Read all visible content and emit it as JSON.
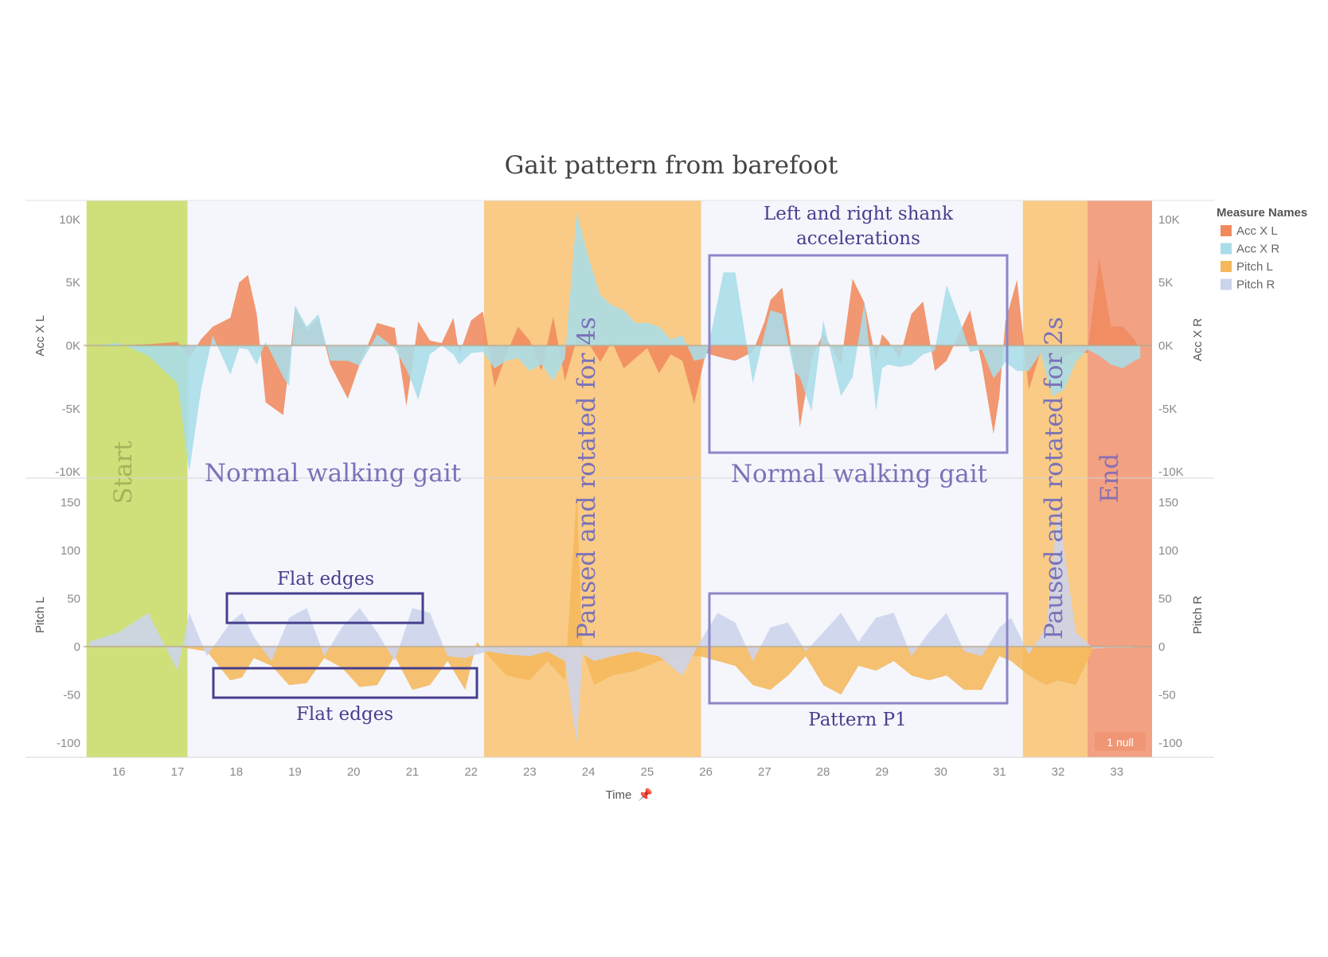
{
  "chart_data": {
    "type": "area",
    "title": "Gait pattern from barefoot",
    "x_axis": {
      "label": "Time",
      "ticks": [
        "16",
        "17",
        "18",
        "19",
        "20",
        "21",
        "22",
        "23",
        "24",
        "25",
        "26",
        "27",
        "28",
        "29",
        "30",
        "31",
        "32",
        "33"
      ],
      "range": [
        15.4,
        33.6
      ]
    },
    "panels": [
      {
        "name": "acceleration",
        "left_label": "Acc X L",
        "right_label": "Acc X R",
        "range": [
          -10500,
          11500
        ],
        "ticks": [
          10000,
          5000,
          0,
          -5000,
          -10000
        ],
        "tick_labels": [
          "10K",
          "5K",
          "0K",
          "-5K",
          "-10K"
        ],
        "series": [
          {
            "name": "Acc X L",
            "color": "#f08a5d",
            "x": [
              15.5,
              16.0,
              16.5,
              17.0,
              17.2,
              17.4,
              17.6,
              17.9,
              18.05,
              18.2,
              18.35,
              18.5,
              18.8,
              18.9,
              19.0,
              19.2,
              19.4,
              19.6,
              19.9,
              20.1,
              20.4,
              20.7,
              20.9,
              21.0,
              21.1,
              21.3,
              21.5,
              21.7,
              21.8,
              22.0,
              22.2,
              22.4,
              22.6,
              22.8,
              23.0,
              23.2,
              23.4,
              23.6,
              23.8,
              24.0,
              24.2,
              24.4,
              24.6,
              24.8,
              25.0,
              25.2,
              25.4,
              25.6,
              25.8,
              26.0,
              26.3,
              26.5,
              26.8,
              27.0,
              27.1,
              27.3,
              27.5,
              27.6,
              27.8,
              28.0,
              28.3,
              28.5,
              28.7,
              28.9,
              29.0,
              29.1,
              29.3,
              29.5,
              29.7,
              29.9,
              30.1,
              30.3,
              30.5,
              30.7,
              30.9,
              31.0,
              31.1,
              31.3,
              31.5,
              31.7,
              31.9,
              32.1,
              32.3,
              32.5,
              32.7,
              32.9,
              33.1,
              33.3,
              33.4
            ],
            "y": [
              0,
              0,
              100,
              300,
              -1000,
              500,
              1500,
              2200,
              5000,
              5600,
              2500,
              -4500,
              -5500,
              -1500,
              3000,
              1200,
              2200,
              -1500,
              -4200,
              -1500,
              1800,
              1400,
              -4800,
              -1500,
              1900,
              400,
              200,
              2200,
              -700,
              2000,
              2700,
              -3300,
              -700,
              1500,
              400,
              -2000,
              2300,
              -2800,
              500,
              200,
              -1300,
              300,
              -1800,
              -1000,
              -200,
              -2200,
              -700,
              -1200,
              -4600,
              -600,
              -1000,
              -1200,
              -500,
              1900,
              3600,
              4600,
              -1500,
              -6500,
              -1000,
              1000,
              -1500,
              5300,
              3400,
              -1200,
              900,
              400,
              -1000,
              2500,
              3500,
              -2000,
              -1200,
              800,
              2800,
              -1500,
              -7000,
              -4000,
              1900,
              5200,
              -3500,
              -500,
              -2000,
              -800,
              -500,
              -600,
              6900,
              1500,
              1500,
              500,
              -400
            ]
          },
          {
            "name": "Acc X R",
            "color": "#a9dde8",
            "x": [
              15.5,
              16.0,
              16.5,
              17.0,
              17.2,
              17.4,
              17.6,
              17.9,
              18.05,
              18.2,
              18.35,
              18.5,
              18.8,
              18.9,
              19.0,
              19.2,
              19.4,
              19.6,
              19.9,
              20.1,
              20.4,
              20.7,
              20.9,
              21.0,
              21.1,
              21.3,
              21.5,
              21.7,
              21.8,
              22.0,
              22.2,
              22.4,
              22.6,
              22.8,
              23.0,
              23.2,
              23.4,
              23.6,
              23.8,
              24.0,
              24.2,
              24.4,
              24.6,
              24.8,
              25.0,
              25.2,
              25.4,
              25.6,
              25.8,
              26.0,
              26.3,
              26.5,
              26.8,
              27.0,
              27.1,
              27.3,
              27.5,
              27.6,
              27.8,
              28.0,
              28.3,
              28.5,
              28.7,
              28.9,
              29.0,
              29.1,
              29.3,
              29.5,
              29.7,
              29.9,
              30.1,
              30.3,
              30.5,
              30.7,
              30.9,
              31.0,
              31.1,
              31.3,
              31.5,
              31.7,
              31.9,
              32.1,
              32.3,
              32.5,
              32.7,
              32.9,
              33.1,
              33.3,
              33.4
            ],
            "y": [
              0,
              200,
              -800,
              -3000,
              -10000,
              -3500,
              800,
              -2300,
              -200,
              -300,
              -1500,
              300,
              -2500,
              -3200,
              3200,
              1500,
              2500,
              -1200,
              -1200,
              -1600,
              900,
              -200,
              -1900,
              -3000,
              -4300,
              -700,
              0,
              -700,
              -1500,
              -600,
              -500,
              -1800,
              -1200,
              -1000,
              -2000,
              -1500,
              -2800,
              -1000,
              10500,
              7000,
              4000,
              3200,
              2800,
              1800,
              1800,
              1500,
              500,
              800,
              -1200,
              -1000,
              5800,
              5800,
              -3000,
              1000,
              2800,
              2500,
              -2000,
              -2500,
              -5200,
              2000,
              -4000,
              -2500,
              3400,
              -5200,
              -1800,
              -1500,
              -1700,
              -1500,
              -700,
              -400,
              4800,
              2300,
              -500,
              -300,
              -2600,
              -2000,
              -1300,
              -2000,
              -2000,
              -600,
              -4000,
              -3500,
              -1300,
              -300,
              -800,
              -1500,
              -1800,
              -1200,
              -1000
            ]
          }
        ]
      },
      {
        "name": "pitch",
        "left_label": "Pitch L",
        "right_label": "Pitch R",
        "range": [
          -115,
          175
        ],
        "ticks": [
          150,
          100,
          50,
          0,
          -50,
          -100
        ],
        "tick_labels": [
          "150",
          "100",
          "50",
          "0",
          "-50",
          "-100"
        ],
        "series": [
          {
            "name": "Pitch L",
            "color": "#f5b85c",
            "x": [
              15.5,
              16.0,
              16.5,
              17.0,
              17.2,
              17.5,
              17.9,
              18.1,
              18.3,
              18.6,
              18.9,
              19.2,
              19.5,
              19.8,
              20.1,
              20.4,
              20.7,
              21.0,
              21.3,
              21.6,
              21.9,
              22.1,
              22.3,
              22.6,
              23.0,
              23.3,
              23.6,
              23.8,
              23.9,
              24.1,
              24.4,
              24.8,
              25.2,
              25.6,
              25.9,
              26.2,
              26.5,
              26.8,
              27.1,
              27.4,
              27.7,
              28.0,
              28.3,
              28.6,
              28.9,
              29.2,
              29.5,
              29.8,
              30.1,
              30.4,
              30.7,
              31.0,
              31.2,
              31.5,
              31.8,
              32.0,
              32.3,
              32.6,
              32.9,
              33.2,
              33.4
            ],
            "y": [
              0,
              2,
              2,
              0,
              -2,
              -5,
              -35,
              -32,
              -12,
              -20,
              -40,
              -38,
              -12,
              -22,
              -42,
              -40,
              -10,
              -45,
              -40,
              -15,
              -45,
              5,
              -10,
              -30,
              -35,
              -15,
              -35,
              160,
              -5,
              -40,
              -30,
              -25,
              -15,
              -10,
              -10,
              -15,
              -20,
              -40,
              -45,
              -30,
              -10,
              -40,
              -50,
              -20,
              -25,
              -15,
              -30,
              -35,
              -30,
              -45,
              -45,
              -10,
              -15,
              -30,
              -40,
              -35,
              -40,
              -2,
              -1,
              -1,
              0
            ]
          },
          {
            "name": "Pitch R",
            "color": "#ccd4ec",
            "x": [
              15.5,
              16.0,
              16.5,
              17.0,
              17.2,
              17.5,
              17.9,
              18.1,
              18.3,
              18.6,
              18.9,
              19.2,
              19.5,
              19.8,
              20.1,
              20.4,
              20.7,
              21.0,
              21.3,
              21.6,
              21.9,
              22.1,
              22.3,
              22.6,
              23.0,
              23.3,
              23.6,
              23.8,
              23.9,
              24.1,
              24.4,
              24.8,
              25.2,
              25.6,
              25.9,
              26.2,
              26.5,
              26.8,
              27.1,
              27.4,
              27.7,
              28.0,
              28.3,
              28.6,
              28.9,
              29.2,
              29.5,
              29.8,
              30.1,
              30.4,
              30.7,
              31.0,
              31.2,
              31.5,
              31.8,
              32.0,
              32.3,
              32.6,
              32.9,
              33.2,
              33.4
            ],
            "y": [
              5,
              15,
              35,
              -25,
              35,
              -10,
              25,
              35,
              10,
              -15,
              30,
              40,
              -10,
              20,
              40,
              15,
              -15,
              40,
              35,
              -10,
              -12,
              -8,
              -5,
              -8,
              -10,
              -5,
              -15,
              -100,
              -8,
              -15,
              -10,
              -5,
              -10,
              -30,
              5,
              35,
              25,
              -15,
              20,
              25,
              -5,
              15,
              35,
              5,
              30,
              35,
              -10,
              15,
              35,
              -5,
              -10,
              20,
              30,
              -8,
              20,
              145,
              15,
              -2,
              -1,
              -1,
              0
            ]
          }
        ]
      }
    ],
    "legend": {
      "title": "Measure Names",
      "position": "right",
      "entries": [
        {
          "name": "Acc X L",
          "color": "#f08a5d"
        },
        {
          "name": "Acc X R",
          "color": "#a9dde8"
        },
        {
          "name": "Pitch L",
          "color": "#f5b85c"
        },
        {
          "name": "Pitch R",
          "color": "#ccd4ec"
        }
      ]
    },
    "phases": [
      {
        "label": "Start",
        "from": 15.45,
        "to": 17.17,
        "color": "#cfe07a"
      },
      {
        "label": "Normal walking gait",
        "from": 17.17,
        "to": 22.22,
        "color": "#f4f6fc"
      },
      {
        "label": "Paused and rotated for 4s",
        "from": 22.22,
        "to": 25.92,
        "color": "#f9cb86"
      },
      {
        "label": "Normal walking gait",
        "from": 25.92,
        "to": 31.4,
        "color": "#f4f6fc"
      },
      {
        "label": "Paused and rotated for 2s",
        "from": 31.4,
        "to": 32.5,
        "color": "#f9cb86"
      },
      {
        "label": "End",
        "from": 32.5,
        "to": 33.6,
        "color": "#f2a182"
      }
    ],
    "annotations": {
      "acc_box": "Left and right shank accelerations",
      "flat_edges_top": "Flat edges",
      "flat_edges_bottom": "Flat edges",
      "pattern": "Pattern P1",
      "null_indicator": "1 null"
    }
  }
}
